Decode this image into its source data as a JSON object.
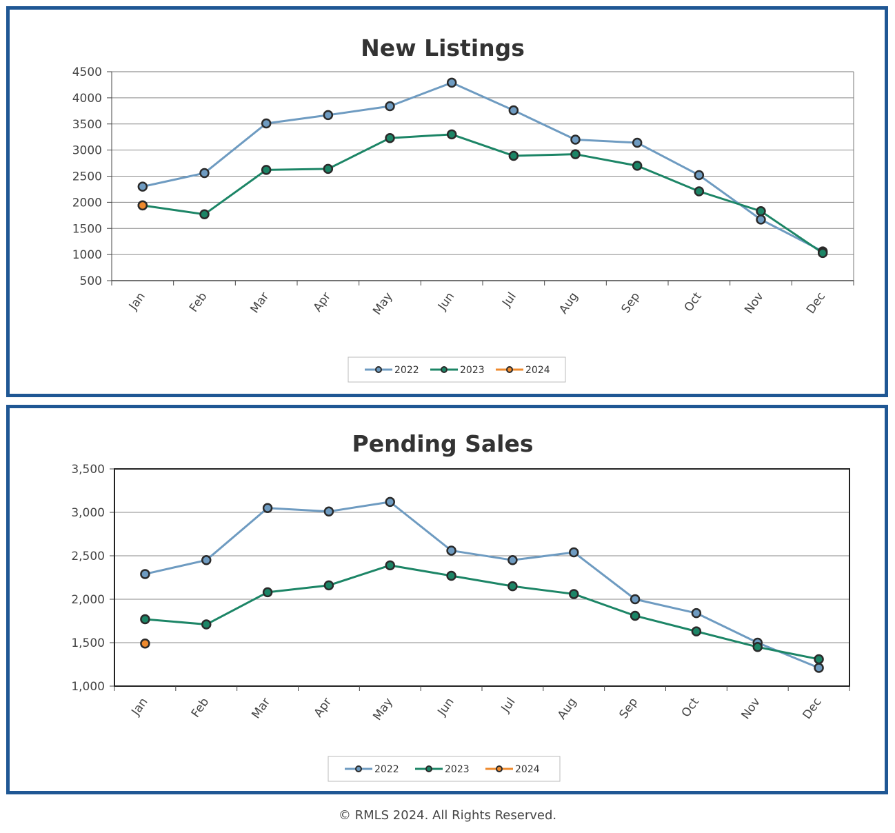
{
  "chart_data": [
    {
      "type": "line",
      "title": "New Listings",
      "categories": [
        "Jan",
        "Feb",
        "Mar",
        "Apr",
        "May",
        "Jun",
        "Jul",
        "Aug",
        "Sep",
        "Oct",
        "Nov",
        "Dec"
      ],
      "ylim": [
        500,
        4500
      ],
      "yticks": [
        "4500",
        "4000",
        "3500",
        "3000",
        "2500",
        "2000",
        "1500",
        "1000",
        "500"
      ],
      "ytick_values": [
        4500,
        4000,
        3500,
        3000,
        2500,
        2000,
        1500,
        1000,
        500
      ],
      "grid": true,
      "legend_position": "bottom",
      "series": [
        {
          "name": "2022",
          "color": "#6e9bc1",
          "values": [
            2300,
            2560,
            3510,
            3670,
            3840,
            4290,
            3760,
            3200,
            3140,
            2520,
            1670,
            1060
          ]
        },
        {
          "name": "2023",
          "color": "#1c8566",
          "values": [
            1940,
            1770,
            2620,
            2640,
            3230,
            3300,
            2890,
            2920,
            2700,
            2210,
            1830,
            1030
          ]
        },
        {
          "name": "2024",
          "color": "#ee8a2e",
          "values": [
            1940,
            null,
            null,
            null,
            null,
            null,
            null,
            null,
            null,
            null,
            null,
            null
          ]
        }
      ]
    },
    {
      "type": "line",
      "title": "Pending Sales",
      "categories": [
        "Jan",
        "Feb",
        "Mar",
        "Apr",
        "May",
        "Jun",
        "Jul",
        "Aug",
        "Sep",
        "Oct",
        "Nov",
        "Dec"
      ],
      "ylim": [
        1000,
        3500
      ],
      "yticks": [
        "3,500",
        "3,000",
        "2,500",
        "2,000",
        "1,500",
        "1,000"
      ],
      "ytick_values": [
        3500,
        3000,
        2500,
        2000,
        1500,
        1000
      ],
      "grid": true,
      "legend_position": "bottom",
      "series": [
        {
          "name": "2022",
          "color": "#6e9bc1",
          "values": [
            2290,
            2450,
            3050,
            3010,
            3120,
            2560,
            2450,
            2540,
            2000,
            1840,
            1500,
            1210
          ]
        },
        {
          "name": "2023",
          "color": "#1c8566",
          "values": [
            1770,
            1710,
            2080,
            2160,
            2390,
            2270,
            2150,
            2060,
            1810,
            1630,
            1450,
            1310
          ]
        },
        {
          "name": "2024",
          "color": "#ee8a2e",
          "values": [
            1490,
            null,
            null,
            null,
            null,
            null,
            null,
            null,
            null,
            null,
            null,
            null
          ]
        }
      ]
    }
  ],
  "footer": "© RMLS 2024. All Rights Reserved."
}
